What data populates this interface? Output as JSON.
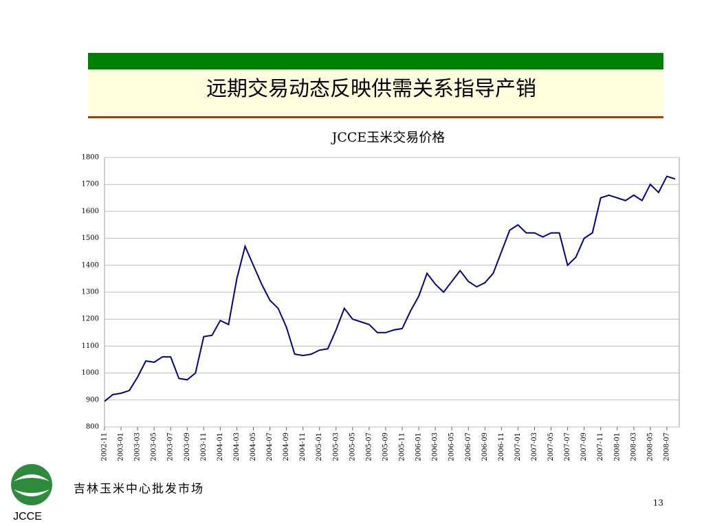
{
  "header": {
    "title": "远期交易动态反映供需关系指导产销"
  },
  "chart_data": {
    "type": "line",
    "title": "JCCE玉米交易价格",
    "x": [
      "2002-11",
      "2002-12",
      "2003-01",
      "2003-02",
      "2003-03",
      "2003-04",
      "2003-05",
      "2003-06",
      "2003-07",
      "2003-08",
      "2003-09",
      "2003-10",
      "2003-11",
      "2003-12",
      "2004-01",
      "2004-02",
      "2004-03",
      "2004-04",
      "2004-05",
      "2004-06",
      "2004-07",
      "2004-08",
      "2004-09",
      "2004-10",
      "2004-11",
      "2004-12",
      "2005-01",
      "2005-02",
      "2005-03",
      "2005-04",
      "2005-05",
      "2005-06",
      "2005-07",
      "2005-08",
      "2005-09",
      "2005-10",
      "2005-11",
      "2005-12",
      "2006-01",
      "2006-02",
      "2006-03",
      "2006-04",
      "2006-05",
      "2006-06",
      "2006-07",
      "2006-08",
      "2006-09",
      "2006-10",
      "2006-11",
      "2006-12",
      "2007-01",
      "2007-02",
      "2007-03",
      "2007-04",
      "2007-05",
      "2007-06",
      "2007-07",
      "2007-08",
      "2007-09",
      "2007-10",
      "2007-11",
      "2007-12",
      "2008-01",
      "2008-02",
      "2008-03",
      "2008-04",
      "2008-05",
      "2008-06",
      "2008-07",
      "2008-08"
    ],
    "series": [
      {
        "color": "#000080",
        "values": [
          895,
          920,
          925,
          935,
          985,
          1045,
          1040,
          1060,
          1060,
          980,
          975,
          1000,
          1135,
          1140,
          1195,
          1180,
          1350,
          1470,
          1400,
          1330,
          1270,
          1240,
          1170,
          1070,
          1065,
          1070,
          1085,
          1090,
          1160,
          1240,
          1200,
          1190,
          1180,
          1150,
          1150,
          1160,
          1165,
          1230,
          1285,
          1370,
          1330,
          1300,
          1340,
          1380,
          1340,
          1320,
          1335,
          1370,
          1450,
          1530,
          1550,
          1520,
          1520,
          1505,
          1520,
          1520,
          1400,
          1430,
          1500,
          1520,
          1650,
          1660,
          1650,
          1640,
          1660,
          1640,
          1700,
          1670,
          1730,
          1720
        ]
      }
    ],
    "xticks": [
      "2002-11",
      "2003-01",
      "2003-03",
      "2003-05",
      "2003-07",
      "2003-09",
      "2003-11",
      "2004-01",
      "2004-03",
      "2004-05",
      "2004-07",
      "2004-09",
      "2004-11",
      "2005-01",
      "2005-03",
      "2005-05",
      "2005-07",
      "2005-09",
      "2005-11",
      "2006-01",
      "2006-03",
      "2006-05",
      "2006-07",
      "2006-09",
      "2006-11",
      "2007-01",
      "2007-03",
      "2007-05",
      "2007-07",
      "2007-09",
      "2007-11",
      "2008-01",
      "2008-03",
      "2008-05",
      "2008-07"
    ],
    "ylim": [
      800,
      1800
    ],
    "yticks": [
      800,
      900,
      1000,
      1100,
      1200,
      1300,
      1400,
      1500,
      1600,
      1700,
      1800
    ],
    "grid": true
  },
  "footer": {
    "org": "吉林玉米中心批发市场",
    "page": "13",
    "logo": "JCCE"
  }
}
